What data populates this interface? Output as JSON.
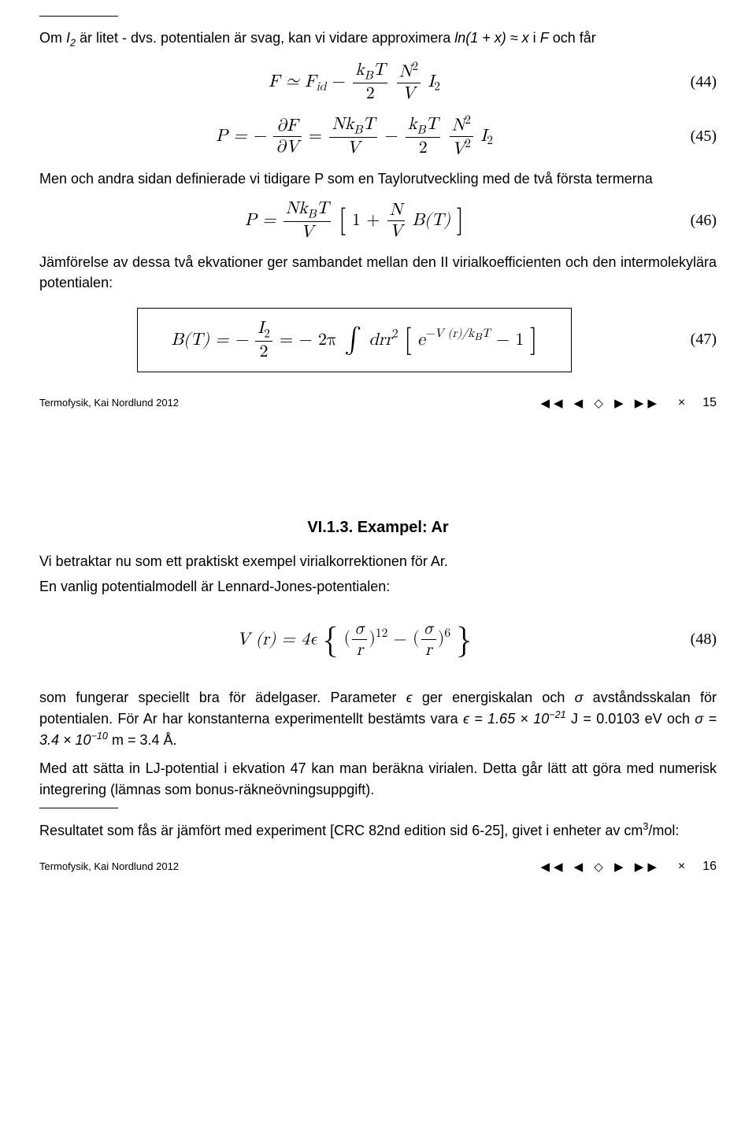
{
  "page1": {
    "p1_a": "Om ",
    "p1_b": " är litet - dvs. potentialen är svag, kan vi vidare approximera ",
    "p1_c": " i ",
    "p1_d": " och får",
    "eq44_num": "(44)",
    "eq45_num": "(45)",
    "p2": "Men och andra sidan definierade vi tidigare P som en Taylorutveckling med de två första termerna",
    "eq46_num": "(46)",
    "p3": "Jämförelse av dessa två ekvationer ger sambandet mellan den II virialkoefficienten och den intermolekylära potentialen:",
    "eq47_num": "(47)",
    "footer_left": "Termofysik, Kai Nordlund 2012",
    "footer_page": "15"
  },
  "page2": {
    "section_title": "VI.1.3. Exampel: Ar",
    "p1": "Vi betraktar nu som ett praktiskt exempel virialkorrektionen för Ar.",
    "p2": "En vanlig potentialmodell är Lennard-Jones-potentialen:",
    "eq48_num": "(48)",
    "p3_a": "som fungerar speciellt bra för ädelgaser. Parameter ",
    "p3_b": " ger energiskalan och ",
    "p3_c": " avståndsskalan för potentialen. För Ar har konstanterna experimentellt bestämts vara ",
    "p3_d": " J ",
    "p3_e": " eV och ",
    "p3_f": " m ",
    "p3_g": " Å.",
    "p4": "Med att sätta in LJ-potential i ekvation 47 kan man beräkna virialen. Detta går lätt att göra med numerisk integrering (lämnas som bonus-räkneövningsuppgift).",
    "p5_a": "Resultatet som fås är jämfört med experiment [CRC 82nd edition sid 6-25], givet i enheter av cm",
    "p5_b": "/mol:",
    "footer_left": "Termofysik, Kai Nordlund 2012",
    "footer_page": "16"
  },
  "math": {
    "I2": "I",
    "I2sub": "2",
    "approx1": "ln(1 + x) ≈ x",
    "F": "F",
    "eq44_lhs": "F ≃ F",
    "eq44_id": "id",
    "eq44_minus": " − ",
    "kBT": "k",
    "B": "B",
    "T": "T",
    "N": "N",
    "V": "V",
    "two": "2",
    "eq45_lhs": "P = − ",
    "partialF": "∂F",
    "partialV": "∂V",
    "equals": " = ",
    "NkBT": "Nk",
    "eq46_lhs": "P = ",
    "one_plus": "1 + ",
    "BT": "B(T)",
    "eq47_lhs": "B(T) = − ",
    "eq47_mid": " = − 2π ",
    "drr2": "drr",
    "exp_pre": "e",
    "exp_exp": "−V (r)/k",
    "minus1": " − 1",
    "eq48_lhs": "V (r) = 4ϵ ",
    "sigma": "σ",
    "r": "r",
    "pow12": "12",
    "pow6": "6",
    "minus": " − ",
    "eps": "ϵ",
    "sigma_sym": "σ",
    "eps_val": "ϵ = 1.65 × 10",
    "eps_exp": "−21",
    "eq_val": "= 0.0103",
    "sigma_val": "σ = 3.4 × 10",
    "sigma_exp": "−10",
    "eq34": "= 3.4",
    "three": "3"
  },
  "nav_icons": "◀◀ ◀ ◇ ▶ ▶▶",
  "close_icon": "×"
}
